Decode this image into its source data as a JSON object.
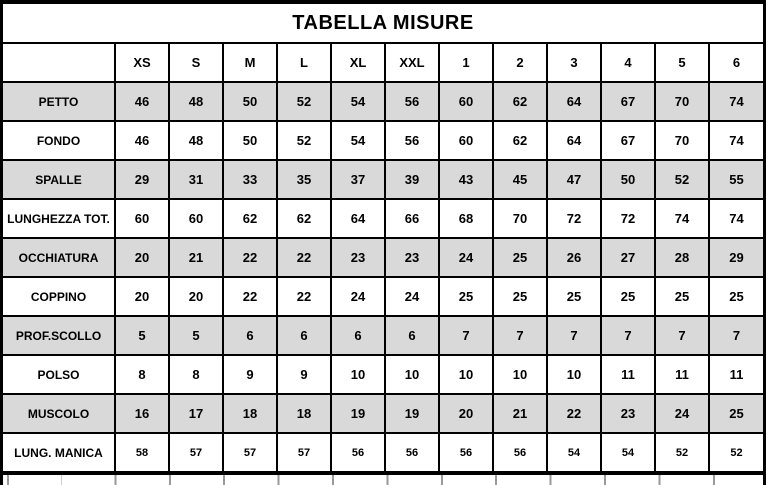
{
  "title": "TABELLA MISURE",
  "table": {
    "columns": [
      "XS",
      "S",
      "M",
      "L",
      "XL",
      "XXL",
      "1",
      "2",
      "3",
      "4",
      "5",
      "6"
    ],
    "rows": [
      {
        "label": "PETTO",
        "values": [
          46,
          48,
          50,
          52,
          54,
          56,
          60,
          62,
          64,
          67,
          70,
          74
        ]
      },
      {
        "label": "FONDO",
        "values": [
          46,
          48,
          50,
          52,
          54,
          56,
          60,
          62,
          64,
          67,
          70,
          74
        ]
      },
      {
        "label": "SPALLE",
        "values": [
          29,
          31,
          33,
          35,
          37,
          39,
          43,
          45,
          47,
          50,
          52,
          55
        ]
      },
      {
        "label": "LUNGHEZZA TOT.",
        "values": [
          60,
          60,
          62,
          62,
          64,
          66,
          68,
          70,
          72,
          72,
          74,
          74
        ]
      },
      {
        "label": "OCCHIATURA",
        "values": [
          20,
          21,
          22,
          22,
          23,
          23,
          24,
          25,
          26,
          27,
          28,
          29
        ]
      },
      {
        "label": "COPPINO",
        "values": [
          20,
          20,
          22,
          22,
          24,
          24,
          25,
          25,
          25,
          25,
          25,
          25
        ]
      },
      {
        "label": "PROF.SCOLLO",
        "values": [
          5,
          5,
          6,
          6,
          6,
          6,
          7,
          7,
          7,
          7,
          7,
          7
        ]
      },
      {
        "label": "POLSO",
        "values": [
          8,
          8,
          9,
          9,
          10,
          10,
          10,
          10,
          10,
          11,
          11,
          11
        ]
      },
      {
        "label": "MUSCOLO",
        "values": [
          16,
          17,
          18,
          18,
          19,
          19,
          20,
          21,
          22,
          23,
          24,
          25
        ]
      },
      {
        "label": "LUNG. MANICA",
        "values": [
          58,
          57,
          57,
          57,
          56,
          56,
          56,
          56,
          54,
          54,
          52,
          52
        ]
      }
    ]
  },
  "colors": {
    "border": "#000000",
    "row_shade": "#d9d9d9",
    "background": "#ffffff"
  }
}
